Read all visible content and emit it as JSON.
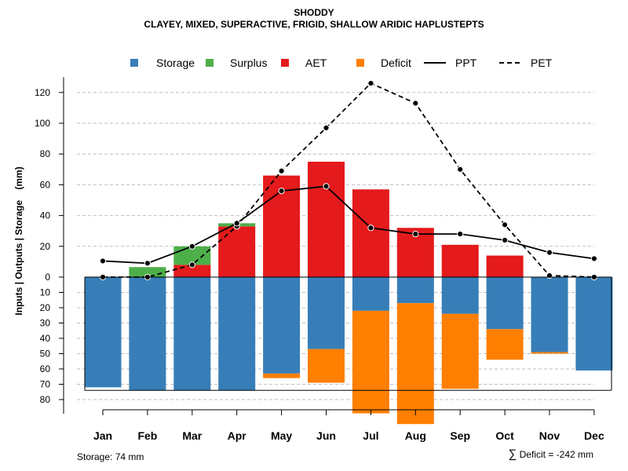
{
  "title": {
    "line1": "SHODDY",
    "line2": "CLAYEY, MIXED, SUPERACTIVE, FRIGID, SHALLOW ARIDIC HAPLUSTEPTS"
  },
  "ylabel": "Inputs | Outputs | Storage    (mm)",
  "footer": {
    "storage": "Storage: 74 mm",
    "deficit_symbol": "∑",
    "deficit": "Deficit = -242 mm"
  },
  "colors": {
    "storage": "#377EB8",
    "surplus": "#4DAF4A",
    "aet": "#E41A1C",
    "deficit": "#FF7F00",
    "grid": "#BEBEBE"
  },
  "chart_data": {
    "type": "bar",
    "categories": [
      "Jan",
      "Feb",
      "Mar",
      "Apr",
      "May",
      "Jun",
      "Jul",
      "Aug",
      "Sep",
      "Oct",
      "Nov",
      "Dec"
    ],
    "legend": [
      "Storage",
      "Surplus",
      "AET",
      "Deficit",
      "PPT",
      "PET"
    ],
    "ylim_top": [
      0,
      130
    ],
    "ylim_bottom": [
      0,
      85
    ],
    "y_ticks_top": [
      "120",
      "100",
      "80",
      "60",
      "40",
      "20",
      "0"
    ],
    "y_ticks_bottom": [
      "10",
      "20",
      "30",
      "40",
      "50",
      "60",
      "70",
      "80"
    ],
    "storage_capacity": 74,
    "series": [
      {
        "name": "Storage",
        "values": [
          72,
          74,
          74,
          74,
          63,
          47,
          22,
          17,
          24,
          34,
          49,
          61
        ]
      },
      {
        "name": "Surplus",
        "values": [
          0,
          6.5,
          12,
          2,
          0,
          0,
          0,
          0,
          0,
          0,
          0,
          0
        ]
      },
      {
        "name": "AET",
        "values": [
          0,
          0,
          8,
          33,
          66,
          75,
          57,
          32,
          21,
          14,
          0,
          0
        ]
      },
      {
        "name": "Deficit",
        "values": [
          0,
          0,
          0,
          0,
          3,
          22,
          67,
          79,
          49,
          20,
          1,
          0
        ]
      },
      {
        "name": "PPT",
        "values": [
          10.5,
          9,
          20,
          35,
          56,
          59,
          32,
          28,
          28,
          24,
          16,
          12
        ]
      },
      {
        "name": "PET",
        "values": [
          0,
          0,
          8,
          33,
          69,
          97,
          126,
          113,
          70,
          34,
          1,
          0
        ]
      }
    ]
  }
}
